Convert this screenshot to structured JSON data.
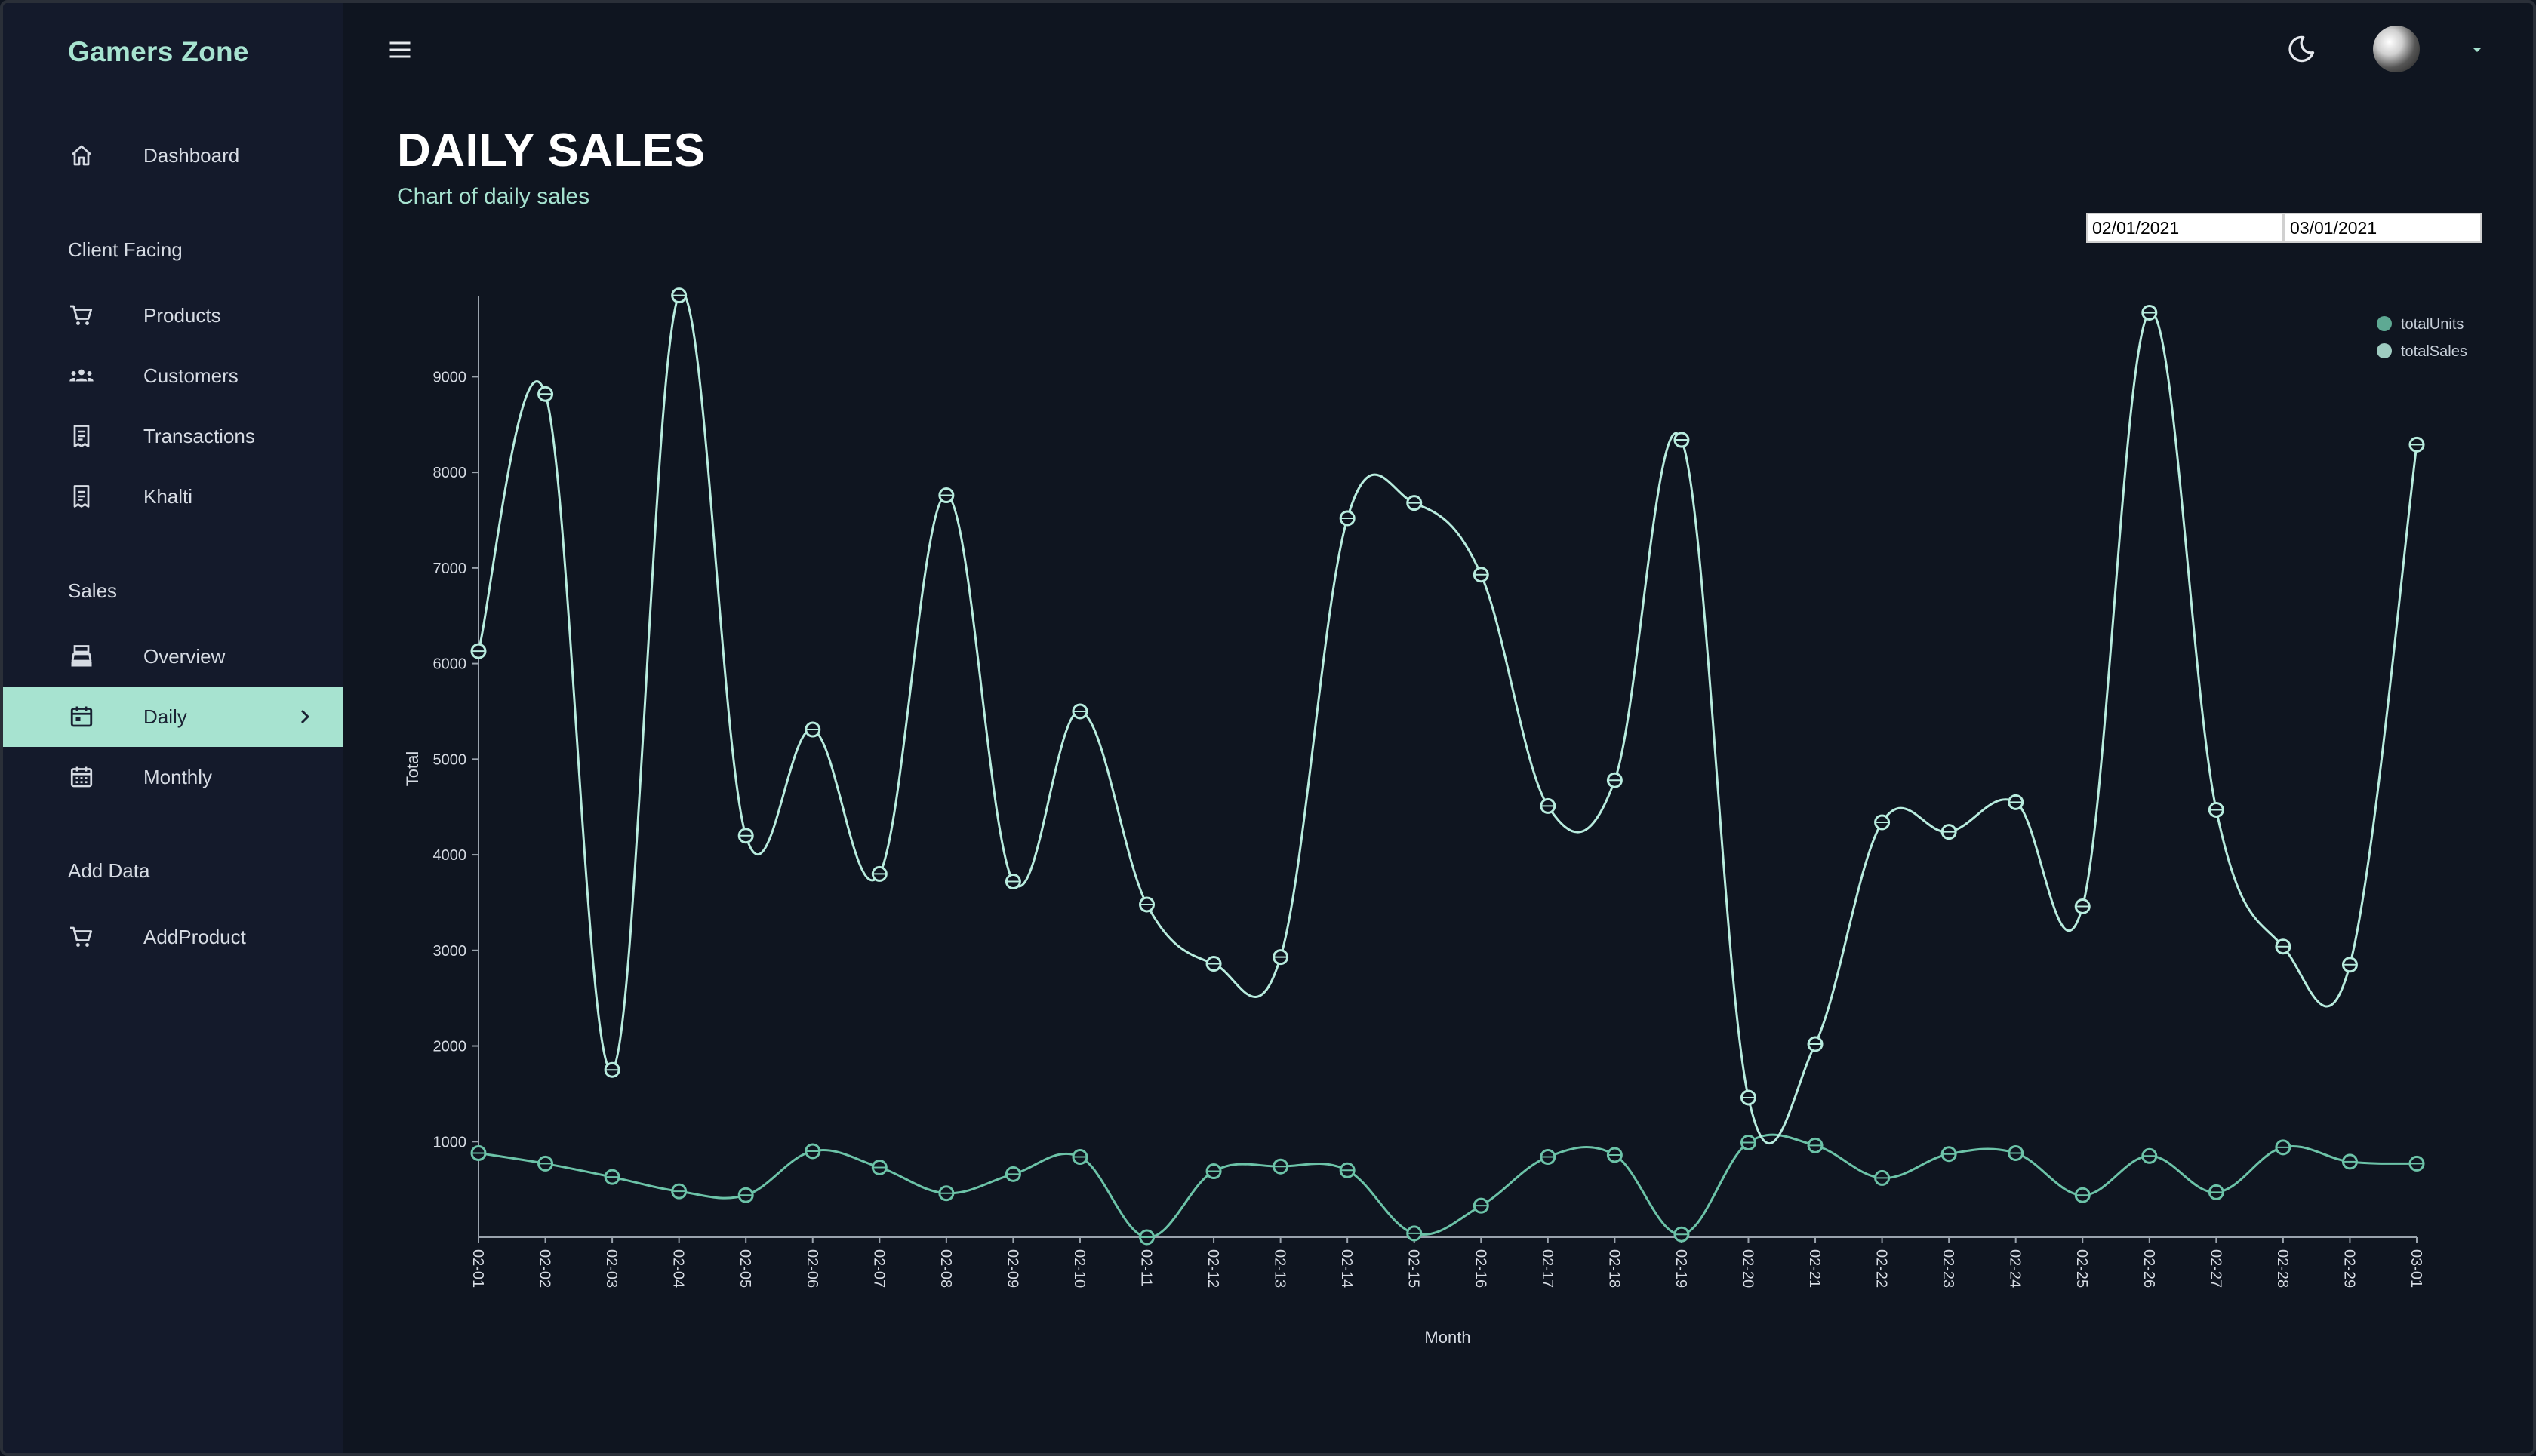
{
  "app": {
    "brand": "Gamers Zone"
  },
  "sidebar": {
    "items": [
      {
        "label": "Dashboard",
        "icon": "home-icon"
      },
      {
        "label": "Products",
        "icon": "shopping-cart-icon"
      },
      {
        "label": "Customers",
        "icon": "groups-icon"
      },
      {
        "label": "Transactions",
        "icon": "receipt-icon"
      },
      {
        "label": "Khalti",
        "icon": "receipt-icon"
      },
      {
        "label": "Overview",
        "icon": "point-of-sale-icon"
      },
      {
        "label": "Daily",
        "icon": "calendar-today-icon"
      },
      {
        "label": "Monthly",
        "icon": "calendar-month-icon"
      },
      {
        "label": "AddProduct",
        "icon": "shopping-cart-icon"
      }
    ],
    "sections": {
      "client": "Client Facing",
      "sales": "Sales",
      "add": "Add Data"
    },
    "active": "Daily"
  },
  "header": {
    "title": "DAILY SALES",
    "subtitle": "Chart of daily sales"
  },
  "filters": {
    "start_date": "02/01/2021",
    "end_date": "03/01/2021"
  },
  "colors": {
    "accent": "#a7e3d0",
    "units_line": "#6cc3a8",
    "sales_line": "#b8ecde",
    "bg": "#0f1520",
    "sidebar": "#141a2b"
  },
  "chart_data": {
    "type": "line",
    "xlabel": "Month",
    "ylabel": "Total",
    "ylim": [
      0,
      9800
    ],
    "yticks": [
      1000,
      2000,
      3000,
      4000,
      5000,
      6000,
      7000,
      8000,
      9000
    ],
    "categories": [
      "02-01",
      "02-02",
      "02-03",
      "02-04",
      "02-05",
      "02-06",
      "02-07",
      "02-08",
      "02-09",
      "02-10",
      "02-11",
      "02-12",
      "02-13",
      "02-14",
      "02-15",
      "02-16",
      "02-17",
      "02-18",
      "02-19",
      "02-20",
      "02-21",
      "02-22",
      "02-23",
      "02-24",
      "02-25",
      "02-26",
      "02-27",
      "02-28",
      "02-29",
      "03-01"
    ],
    "legend": {
      "position": "top-right"
    },
    "series": [
      {
        "name": "totalUnits",
        "color": "#6cc3a8",
        "values": [
          880,
          770,
          630,
          480,
          440,
          900,
          730,
          460,
          660,
          840,
          0,
          690,
          740,
          700,
          40,
          330,
          840,
          860,
          30,
          990,
          960,
          620,
          870,
          880,
          440,
          850,
          470,
          940,
          790,
          770
        ]
      },
      {
        "name": "totalSales",
        "color": "#b8ecde",
        "values": [
          6130,
          8820,
          1750,
          9850,
          4200,
          5310,
          3800,
          7760,
          3720,
          5500,
          3480,
          2860,
          2930,
          7520,
          7680,
          6930,
          4510,
          4780,
          8340,
          1460,
          2020,
          4340,
          4240,
          4550,
          3460,
          9670,
          4470,
          3040,
          2850,
          8290
        ]
      }
    ]
  }
}
